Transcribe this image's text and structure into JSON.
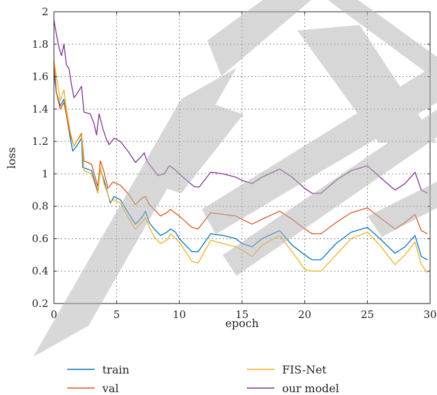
{
  "chart_data": {
    "type": "line",
    "xlabel": "epoch",
    "ylabel": "loss",
    "xlim": [
      0,
      30
    ],
    "ylim": [
      0.2,
      2
    ],
    "xticks": [
      "0",
      "5",
      "10",
      "15",
      "20",
      "25",
      "30"
    ],
    "yticks": [
      "0.2",
      "0.4",
      "0.6",
      "0.8",
      "1",
      "1.2",
      "1.4",
      "1.6",
      "1.8",
      "2"
    ],
    "grid": true,
    "legend_position": "bottom",
    "watermark": "RETRACTED",
    "series": [
      {
        "name": "train",
        "color": "#0072bd",
        "points": [
          [
            0,
            1.62
          ],
          [
            0.2,
            1.5
          ],
          [
            0.5,
            1.42
          ],
          [
            0.8,
            1.46
          ],
          [
            1,
            1.36
          ],
          [
            1.3,
            1.22
          ],
          [
            1.5,
            1.14
          ],
          [
            1.8,
            1.17
          ],
          [
            2.2,
            1.22
          ],
          [
            2.3,
            1.04
          ],
          [
            3,
            1.02
          ],
          [
            3.5,
            0.89
          ],
          [
            3.7,
            1.03
          ],
          [
            4,
            0.96
          ],
          [
            4.5,
            0.82
          ],
          [
            4.8,
            0.86
          ],
          [
            5.3,
            0.84
          ],
          [
            6,
            0.75
          ],
          [
            6.5,
            0.69
          ],
          [
            7,
            0.73
          ],
          [
            7.3,
            0.77
          ],
          [
            7.6,
            0.7
          ],
          [
            8,
            0.66
          ],
          [
            8.5,
            0.62
          ],
          [
            9,
            0.64
          ],
          [
            9.3,
            0.66
          ],
          [
            9.7,
            0.64
          ],
          [
            10,
            0.6
          ],
          [
            11,
            0.52
          ],
          [
            11.5,
            0.52
          ],
          [
            12.5,
            0.63
          ],
          [
            13.5,
            0.62
          ],
          [
            14.5,
            0.6
          ],
          [
            15,
            0.57
          ],
          [
            15.8,
            0.55
          ],
          [
            16.6,
            0.6
          ],
          [
            18,
            0.65
          ],
          [
            19,
            0.56
          ],
          [
            20,
            0.5
          ],
          [
            20.6,
            0.47
          ],
          [
            21.3,
            0.47
          ],
          [
            22.5,
            0.57
          ],
          [
            23.7,
            0.64
          ],
          [
            25,
            0.67
          ],
          [
            26,
            0.6
          ],
          [
            27.2,
            0.51
          ],
          [
            28,
            0.55
          ],
          [
            28.8,
            0.62
          ],
          [
            29.3,
            0.49
          ],
          [
            29.8,
            0.47
          ]
        ]
      },
      {
        "name": "val",
        "color": "#d95319",
        "points": [
          [
            0,
            1.7
          ],
          [
            0.2,
            1.5
          ],
          [
            0.5,
            1.4
          ],
          [
            0.8,
            1.44
          ],
          [
            1,
            1.36
          ],
          [
            1.3,
            1.24
          ],
          [
            1.6,
            1.17
          ],
          [
            1.8,
            1.2
          ],
          [
            2.2,
            1.25
          ],
          [
            2.4,
            1.08
          ],
          [
            3,
            1.06
          ],
          [
            3.5,
            0.92
          ],
          [
            3.7,
            1.08
          ],
          [
            4,
            1.01
          ],
          [
            4.3,
            0.91
          ],
          [
            4.7,
            0.95
          ],
          [
            5.3,
            0.93
          ],
          [
            6,
            0.87
          ],
          [
            6.5,
            0.81
          ],
          [
            7,
            0.85
          ],
          [
            7.3,
            0.86
          ],
          [
            7.6,
            0.81
          ],
          [
            8,
            0.78
          ],
          [
            8.5,
            0.74
          ],
          [
            9,
            0.76
          ],
          [
            9.3,
            0.78
          ],
          [
            10,
            0.74
          ],
          [
            11,
            0.67
          ],
          [
            11.5,
            0.66
          ],
          [
            12.5,
            0.76
          ],
          [
            13.5,
            0.75
          ],
          [
            14.5,
            0.74
          ],
          [
            15,
            0.72
          ],
          [
            15.8,
            0.69
          ],
          [
            16.6,
            0.72
          ],
          [
            18,
            0.77
          ],
          [
            19,
            0.72
          ],
          [
            20,
            0.66
          ],
          [
            20.6,
            0.63
          ],
          [
            21.3,
            0.63
          ],
          [
            22.5,
            0.7
          ],
          [
            23.7,
            0.76
          ],
          [
            25,
            0.79
          ],
          [
            26,
            0.73
          ],
          [
            27.2,
            0.66
          ],
          [
            28,
            0.7
          ],
          [
            28.8,
            0.75
          ],
          [
            29.3,
            0.65
          ],
          [
            29.8,
            0.63
          ]
        ]
      },
      {
        "name": "FIS-Net",
        "color": "#edb120",
        "points": [
          [
            0,
            1.7
          ],
          [
            0.2,
            1.6
          ],
          [
            0.5,
            1.45
          ],
          [
            0.8,
            1.52
          ],
          [
            1,
            1.4
          ],
          [
            1.3,
            1.26
          ],
          [
            1.6,
            1.17
          ],
          [
            1.8,
            1.2
          ],
          [
            2.2,
            1.24
          ],
          [
            2.4,
            1.02
          ],
          [
            3,
            1.0
          ],
          [
            3.5,
            0.88
          ],
          [
            3.7,
            1.04
          ],
          [
            4,
            0.94
          ],
          [
            4.5,
            0.83
          ],
          [
            4.8,
            0.84
          ],
          [
            5.3,
            0.82
          ],
          [
            6,
            0.72
          ],
          [
            6.5,
            0.66
          ],
          [
            7,
            0.7
          ],
          [
            7.3,
            0.73
          ],
          [
            7.6,
            0.67
          ],
          [
            8,
            0.61
          ],
          [
            8.5,
            0.57
          ],
          [
            9,
            0.59
          ],
          [
            9.3,
            0.63
          ],
          [
            10,
            0.58
          ],
          [
            11,
            0.46
          ],
          [
            11.5,
            0.45
          ],
          [
            12.5,
            0.59
          ],
          [
            13.5,
            0.57
          ],
          [
            14.5,
            0.55
          ],
          [
            15,
            0.53
          ],
          [
            15.8,
            0.49
          ],
          [
            16.6,
            0.56
          ],
          [
            18,
            0.62
          ],
          [
            19,
            0.52
          ],
          [
            20,
            0.41
          ],
          [
            20.6,
            0.4
          ],
          [
            21.3,
            0.4
          ],
          [
            22.5,
            0.5
          ],
          [
            23.7,
            0.6
          ],
          [
            25,
            0.64
          ],
          [
            26,
            0.56
          ],
          [
            27.2,
            0.44
          ],
          [
            28,
            0.5
          ],
          [
            28.8,
            0.58
          ],
          [
            29.3,
            0.44
          ],
          [
            29.8,
            0.39
          ]
        ]
      },
      {
        "name": "our model",
        "color": "#7e2f8e",
        "points": [
          [
            0,
            1.95
          ],
          [
            0.2,
            1.86
          ],
          [
            0.4,
            1.78
          ],
          [
            0.6,
            1.73
          ],
          [
            0.8,
            1.8
          ],
          [
            1,
            1.67
          ],
          [
            1.2,
            1.65
          ],
          [
            1.4,
            1.55
          ],
          [
            1.6,
            1.47
          ],
          [
            1.8,
            1.49
          ],
          [
            2.2,
            1.54
          ],
          [
            2.4,
            1.38
          ],
          [
            2.9,
            1.37
          ],
          [
            3.2,
            1.31
          ],
          [
            3.4,
            1.24
          ],
          [
            3.6,
            1.37
          ],
          [
            3.9,
            1.28
          ],
          [
            4.2,
            1.21
          ],
          [
            4.4,
            1.18
          ],
          [
            4.8,
            1.22
          ],
          [
            5.3,
            1.2
          ],
          [
            6,
            1.13
          ],
          [
            6.5,
            1.07
          ],
          [
            7,
            1.11
          ],
          [
            7.2,
            1.13
          ],
          [
            7.4,
            1.08
          ],
          [
            7.8,
            1.04
          ],
          [
            8.3,
            0.99
          ],
          [
            8.8,
            1.0
          ],
          [
            9.2,
            1.05
          ],
          [
            9.6,
            1.03
          ],
          [
            10,
            1.0
          ],
          [
            11.2,
            0.92
          ],
          [
            11.6,
            0.92
          ],
          [
            12.5,
            1.01
          ],
          [
            13.5,
            1.0
          ],
          [
            14.5,
            0.98
          ],
          [
            15,
            0.96
          ],
          [
            15.8,
            0.94
          ],
          [
            16.6,
            0.98
          ],
          [
            18,
            1.03
          ],
          [
            19,
            0.98
          ],
          [
            20,
            0.91
          ],
          [
            20.6,
            0.88
          ],
          [
            21.3,
            0.88
          ],
          [
            22.5,
            0.96
          ],
          [
            23.7,
            1.02
          ],
          [
            25,
            1.05
          ],
          [
            26,
            0.98
          ],
          [
            27.2,
            0.9
          ],
          [
            28,
            0.94
          ],
          [
            28.8,
            1.01
          ],
          [
            29.3,
            0.9
          ],
          [
            29.8,
            0.88
          ]
        ]
      }
    ]
  }
}
